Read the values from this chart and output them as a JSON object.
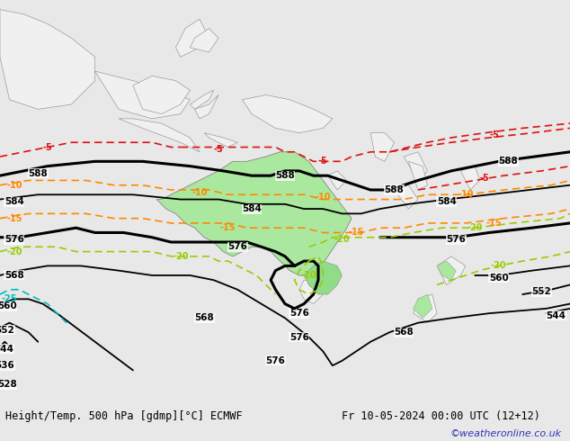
{
  "title_left": "Height/Temp. 500 hPa [gdmp][°C] ECMWF",
  "title_right": "Fr 10-05-2024 00:00 UTC (12+12)",
  "credit": "©weatheronline.co.uk",
  "bg_color": "#e8e8e8",
  "ocean_color": "#dcdcdc",
  "land_color": "#f0f0f0",
  "green_color": "#a8e8a0",
  "green2_color": "#90d890",
  "figure_width": 6.34,
  "figure_height": 4.9,
  "dpi": 100,
  "bottom_bar_color": "#d8d8d8",
  "title_fontsize": 8.5,
  "credit_fontsize": 8,
  "credit_color": "#3333bb",
  "lon_min": 80,
  "lon_max": 200,
  "lat_min": -65,
  "lat_max": 20,
  "contour_lw": 1.3,
  "thick_lw": 2.2,
  "label_fontsize": 7.5,
  "temp_fontsize": 7.0
}
